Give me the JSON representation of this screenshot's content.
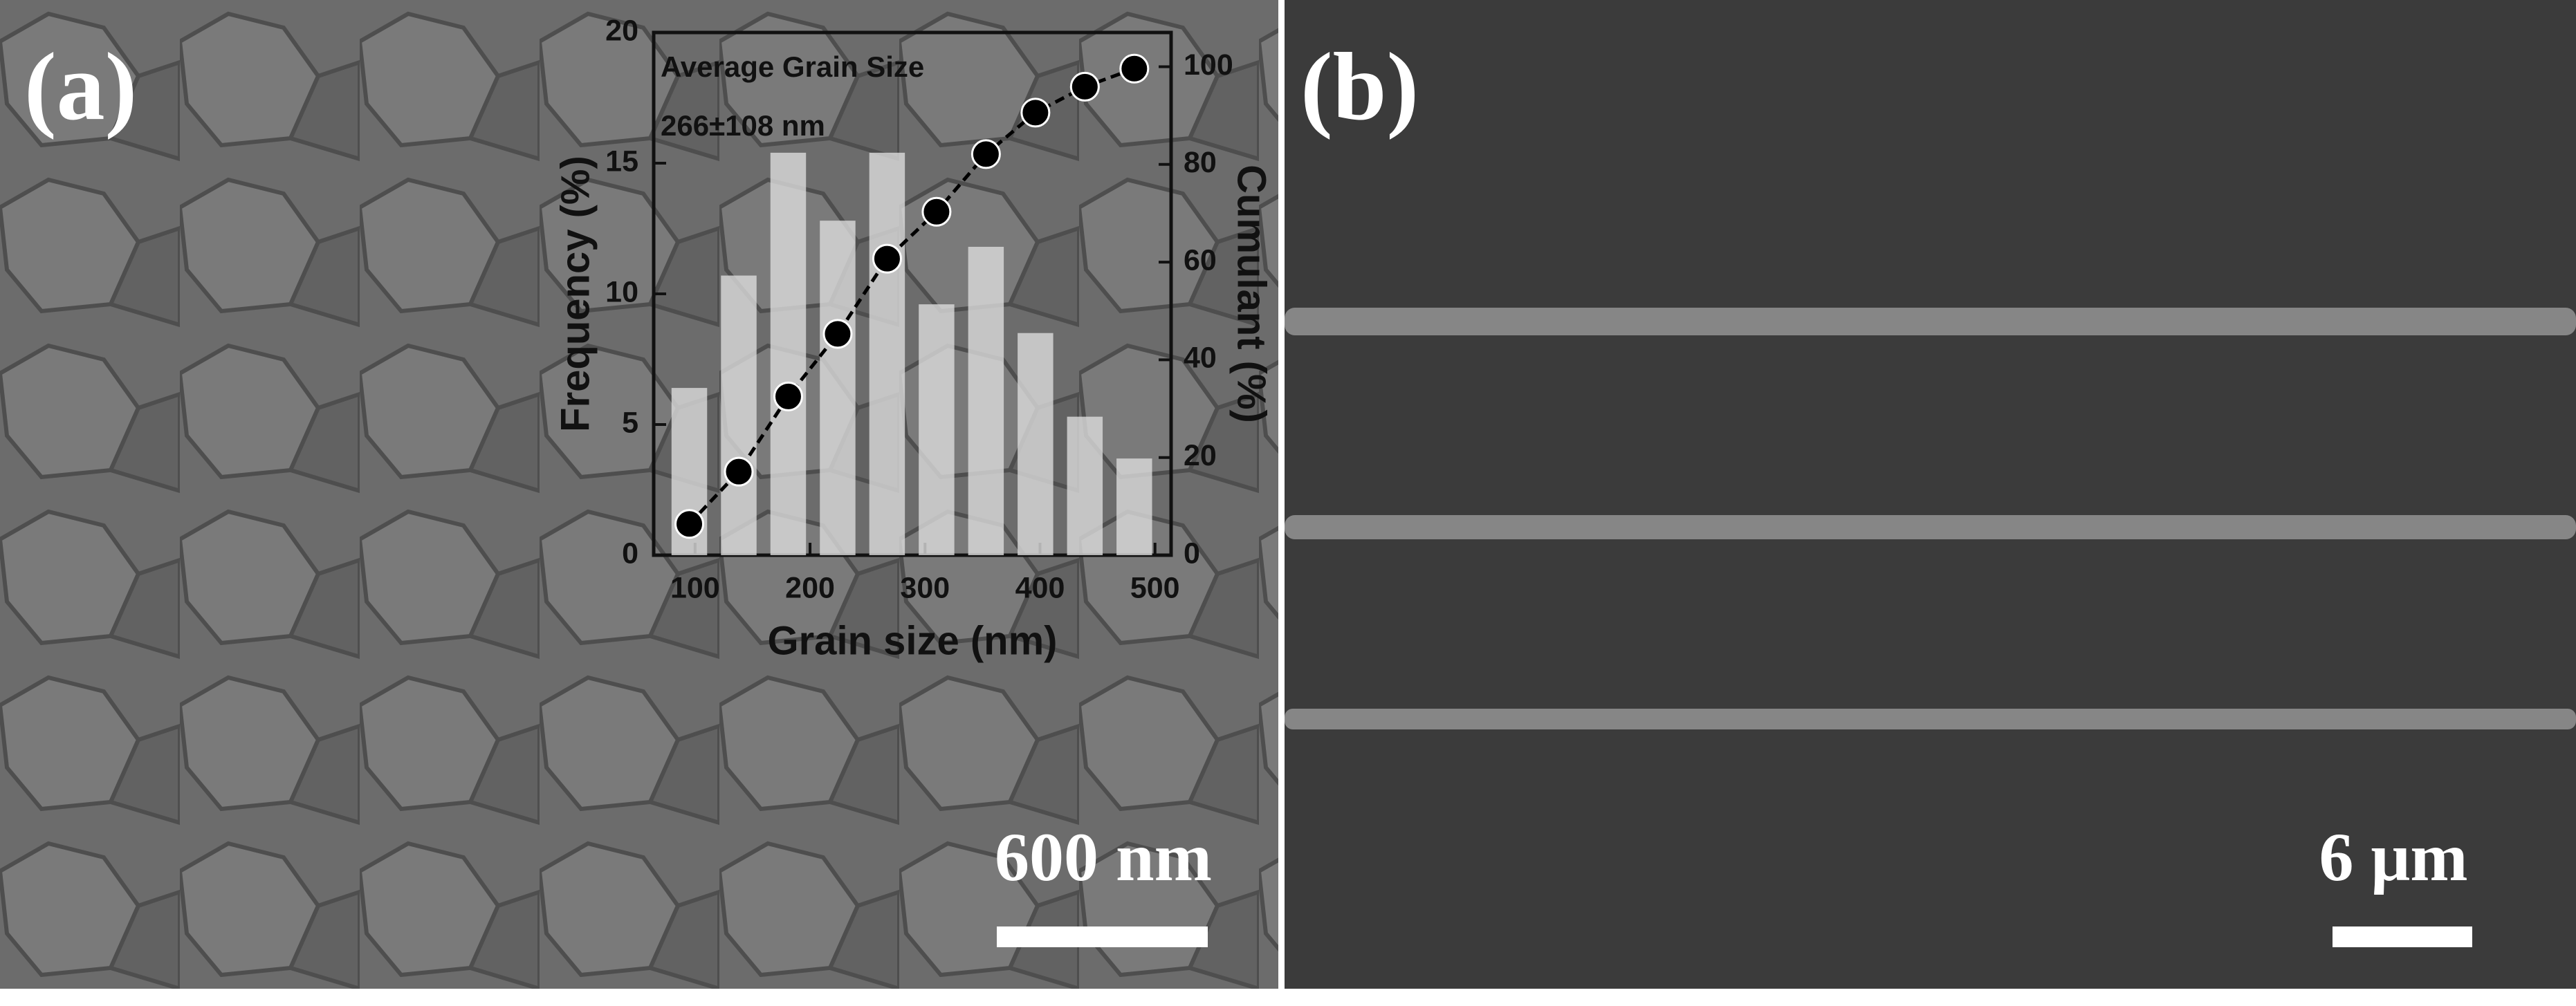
{
  "panels": [
    {
      "label": "(a)",
      "scale_bar": "600 nm"
    },
    {
      "label": "(b)",
      "scale_bar": "6 μm"
    }
  ],
  "chart_data": {
    "type": "bar",
    "annotations": [
      "Average Grain Size",
      "266±108 nm"
    ],
    "x_label": "Grain size (nm)",
    "y_label": "Frequency (%)",
    "y2_label": "Cumulant (%)",
    "x": [
      95,
      138,
      181,
      224,
      267,
      310,
      353,
      396,
      439,
      482
    ],
    "series": [
      {
        "color": "#dcdcdc",
        "values": [
          6.4,
          10.7,
          15.4,
          12.8,
          15.4,
          9.6,
          11.8,
          8.5,
          5.3,
          3.7
        ]
      },
      {
        "color": "#000000",
        "axis": "y2",
        "values": [
          6.4,
          17.1,
          32.5,
          45.3,
          60.7,
          70.3,
          82.1,
          90.6,
          95.9,
          99.6
        ]
      }
    ],
    "xlim": [
      64,
      514
    ],
    "xticks": [
      100,
      200,
      300,
      400,
      500
    ],
    "ylim": [
      0,
      20
    ],
    "yticks": [
      0,
      5,
      10,
      15,
      20
    ],
    "y2lim": [
      0,
      107
    ],
    "y2ticks": [
      0,
      20,
      40,
      60,
      80,
      100
    ]
  }
}
